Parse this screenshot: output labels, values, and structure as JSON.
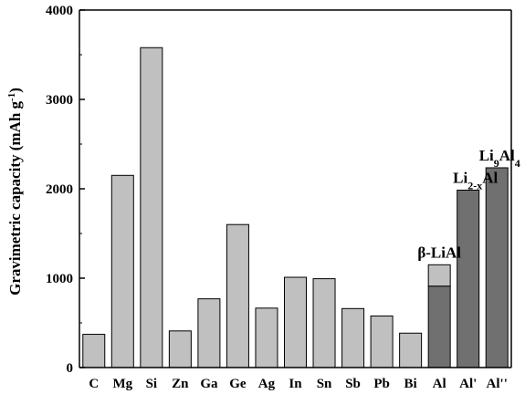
{
  "chart_data": {
    "type": "bar",
    "title": "",
    "xlabel": "",
    "ylabel": "Gravimetric capacity (mAh g",
    "ylabel_sup": "-1",
    "ylabel_end": ")",
    "ylim": [
      0,
      4000
    ],
    "yticks": [
      0,
      1000,
      2000,
      3000,
      4000
    ],
    "grid": false,
    "categories": [
      "C",
      "Mg",
      "Si",
      "Zn",
      "Ga",
      "Ge",
      "Ag",
      "In",
      "Sn",
      "Sb",
      "Pb",
      "Bi",
      "Al",
      "Al'",
      "Al''"
    ],
    "values": [
      372,
      2150,
      3579,
      410,
      769,
      1600,
      665,
      1010,
      994,
      660,
      577,
      385,
      1150,
      1985,
      2235
    ],
    "stacked_inner": {
      "category": "Al",
      "value": 910
    },
    "colors": {
      "light": "#c0c0c0",
      "dark": "#707070",
      "axis": "#000000"
    },
    "dark_categories": [
      "Al",
      "Al'",
      "Al''"
    ],
    "annotations": [
      {
        "category": "Al",
        "text": "β-LiAl"
      },
      {
        "category": "Al'",
        "base": "Li",
        "sub": "2-x",
        "rest": "Al"
      },
      {
        "category": "Al''",
        "base": "Li",
        "sub": "9",
        "mid": "Al",
        "sub2": "4"
      }
    ]
  }
}
